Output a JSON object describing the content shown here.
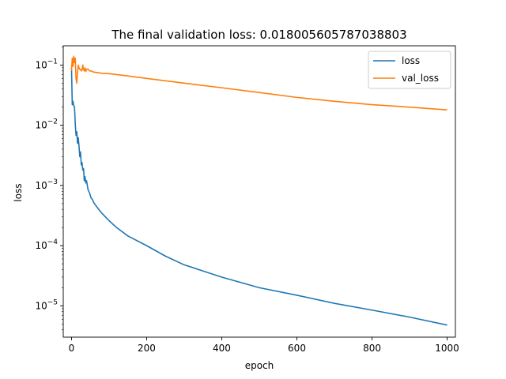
{
  "chart_data": {
    "type": "line",
    "title": "The final validation loss: 0.018005605787038803",
    "xlabel": "epoch",
    "ylabel": "loss",
    "yscale": "log",
    "xlim": [
      -22,
      1022
    ],
    "ylim_exponent": [
      -5.52,
      -0.68
    ],
    "xticks": [
      0,
      200,
      400,
      600,
      800,
      1000
    ],
    "xtick_labels": [
      "0",
      "200",
      "400",
      "600",
      "800",
      "1000"
    ],
    "yticks_exponent": [
      -5,
      -4,
      -3,
      -2,
      -1
    ],
    "ytick_bases": [
      "10",
      "10",
      "10",
      "10",
      "10"
    ],
    "ytick_exponents": [
      "−5",
      "−4",
      "−3",
      "−2",
      "−1"
    ],
    "grid": false,
    "legend_position": "top-right",
    "series": [
      {
        "name": "loss",
        "color": "#1f77b4",
        "x": [
          0,
          2,
          4,
          6,
          8,
          10,
          12,
          14,
          16,
          18,
          20,
          22,
          24,
          26,
          28,
          30,
          32,
          34,
          36,
          38,
          40,
          44,
          48,
          52,
          56,
          60,
          70,
          80,
          100,
          120,
          150,
          200,
          250,
          300,
          400,
          500,
          600,
          700,
          800,
          900,
          1000
        ],
        "y": [
          0.09,
          0.022,
          0.025,
          0.021,
          0.02,
          0.0105,
          0.0068,
          0.0078,
          0.005,
          0.0062,
          0.0045,
          0.003,
          0.0036,
          0.0022,
          0.0024,
          0.0018,
          0.0019,
          0.0012,
          0.0014,
          0.0011,
          0.0012,
          0.00085,
          0.00075,
          0.00062,
          0.00058,
          0.00051,
          0.00042,
          0.00035,
          0.00026,
          0.0002,
          0.000145,
          0.0001,
          6.7e-05,
          4.8e-05,
          3e-05,
          2e-05,
          1.5e-05,
          1.1e-05,
          8.5e-06,
          6.5e-06,
          4.8e-06
        ]
      },
      {
        "name": "val_loss",
        "color": "#ff7f0e",
        "x": [
          0,
          2,
          4,
          6,
          8,
          10,
          12,
          14,
          16,
          18,
          20,
          22,
          24,
          26,
          28,
          30,
          32,
          34,
          36,
          38,
          40,
          44,
          48,
          52,
          56,
          60,
          70,
          80,
          100,
          150,
          200,
          300,
          400,
          500,
          600,
          700,
          800,
          900,
          1000
        ],
        "y": [
          0.08,
          0.13,
          0.095,
          0.14,
          0.11,
          0.13,
          0.06,
          0.05,
          0.075,
          0.1,
          0.09,
          0.085,
          0.085,
          0.08,
          0.082,
          0.1,
          0.085,
          0.08,
          0.09,
          0.078,
          0.085,
          0.086,
          0.08,
          0.08,
          0.078,
          0.076,
          0.075,
          0.073,
          0.072,
          0.066,
          0.06,
          0.05,
          0.042,
          0.035,
          0.029,
          0.025,
          0.022,
          0.02,
          0.018
        ]
      }
    ]
  }
}
